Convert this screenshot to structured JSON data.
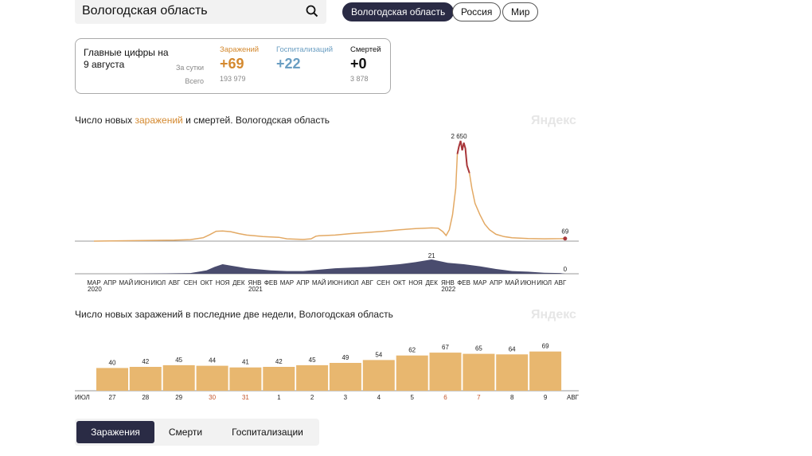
{
  "search": {
    "value": "Вологодская область"
  },
  "region_pills": [
    {
      "label": "Вологодская область",
      "active": true
    },
    {
      "label": "Россия",
      "active": false
    },
    {
      "label": "Мир",
      "active": false
    }
  ],
  "summary": {
    "title": "Главные цифры на 9 августа",
    "row_day": "За сутки",
    "row_total": "Всего",
    "metrics": [
      {
        "name": "Заражений",
        "day": "+69",
        "total": "193 979",
        "color": "#d4892f"
      },
      {
        "name": "Госпитализаций",
        "day": "+22",
        "total": "",
        "color": "#6a9ec2"
      },
      {
        "name": "Смертей",
        "day": "+0",
        "total": "3 878",
        "color": "#111111"
      }
    ]
  },
  "chart1": {
    "title_pre": "Число новых ",
    "title_accent": "заражений",
    "title_post": " и смертей. Вологодская область",
    "watermark": "Яндекс",
    "month_ticks": [
      "МАР",
      "АПР",
      "МАЙ",
      "ИЮН",
      "ИЮЛ",
      "АВГ",
      "СЕН",
      "ОКТ",
      "НОЯ",
      "ДЕК",
      "ЯНВ",
      "ФЕВ",
      "МАР",
      "АПР",
      "МАЙ",
      "ИЮН",
      "ИЮЛ",
      "АВГ",
      "СЕН",
      "ОКТ",
      "НОЯ",
      "ДЕК",
      "ЯНВ",
      "ФЕВ",
      "МАР",
      "АПР",
      "МАЙ",
      "ИЮН",
      "ИЮЛ",
      "АВГ"
    ],
    "year_labels": [
      {
        "label": "2020",
        "month_index": 0
      },
      {
        "label": "2021",
        "month_index": 10
      },
      {
        "label": "2022",
        "month_index": 22
      }
    ],
    "peak_label": "2 650",
    "last_label": "69",
    "deaths_peak_label": "21",
    "deaths_last_label": "0"
  },
  "chart_data": [
    {
      "type": "area",
      "title": "Число новых заражений и смертей. Вологодская область",
      "series": [
        {
          "name": "заражений",
          "color": "#e3a964",
          "peak_color": "#a8363a",
          "x_months": [
            0,
            1,
            2,
            3,
            4,
            5,
            6,
            6.8,
            7.2,
            7.6,
            8,
            8.5,
            9,
            9.5,
            10,
            10.5,
            11,
            11.5,
            12,
            13,
            13.5,
            13.8,
            14,
            15,
            16,
            17,
            18,
            19,
            20,
            21,
            21.4,
            21.7,
            21.9,
            22.1,
            22.3,
            22.5,
            22.6,
            22.7,
            22.8,
            22.9,
            23,
            23.1,
            23.2,
            23.35,
            23.5,
            23.7,
            24,
            24.3,
            24.6,
            25,
            25.5,
            26,
            27,
            28,
            29,
            29.3
          ],
          "values": [
            0,
            5,
            10,
            15,
            20,
            25,
            40,
            90,
            170,
            260,
            270,
            250,
            200,
            160,
            140,
            120,
            110,
            100,
            60,
            45,
            60,
            130,
            140,
            160,
            200,
            230,
            260,
            300,
            330,
            350,
            340,
            250,
            150,
            300,
            700,
            1400,
            2300,
            2500,
            2650,
            2400,
            2600,
            2450,
            2000,
            1800,
            1400,
            1000,
            700,
            450,
            300,
            180,
            120,
            90,
            70,
            60,
            65,
            69
          ]
        },
        {
          "name": "смертей",
          "color": "#4a4c6e",
          "x_months": [
            0,
            2,
            4,
            6,
            7,
            7.5,
            8,
            8.5,
            9,
            9.5,
            10,
            10.5,
            11,
            12,
            13,
            14,
            15,
            16,
            17,
            18,
            19,
            20,
            21,
            22,
            23,
            24,
            25,
            26,
            27,
            28,
            29,
            29.3
          ],
          "values": [
            0,
            0,
            0.5,
            1,
            5,
            10,
            14,
            12,
            10,
            8,
            7,
            6,
            5,
            4,
            4,
            6,
            8,
            9,
            10,
            12,
            14,
            17,
            21,
            16,
            14,
            11,
            7,
            4,
            3,
            1.5,
            1,
            0
          ]
        }
      ],
      "peak": 2650,
      "last": 69,
      "deaths_peak": 21,
      "deaths_last": 0
    },
    {
      "type": "bar",
      "title": "Число новых заражений в последние две недели, Вологодская область",
      "categories": [
        "27",
        "28",
        "29",
        "30",
        "31",
        "1",
        "2",
        "3",
        "4",
        "5",
        "6",
        "7",
        "8",
        "9"
      ],
      "values": [
        40,
        42,
        45,
        44,
        41,
        42,
        45,
        49,
        54,
        62,
        67,
        65,
        64,
        69
      ],
      "weekend": [
        false,
        false,
        false,
        true,
        true,
        false,
        false,
        false,
        false,
        false,
        true,
        true,
        false,
        false
      ],
      "left_month": "ИЮЛ",
      "right_month": "АВГ",
      "bar_color": "#e8b76f",
      "ylim": [
        0,
        80
      ]
    }
  ],
  "chart2": {
    "title": "Число новых заражений в последние две недели, Вологодская область",
    "watermark": "Яндекс"
  },
  "tabs": [
    {
      "label": "Заражения",
      "active": true
    },
    {
      "label": "Смерти",
      "active": false
    },
    {
      "label": "Госпитализации",
      "active": false
    }
  ]
}
